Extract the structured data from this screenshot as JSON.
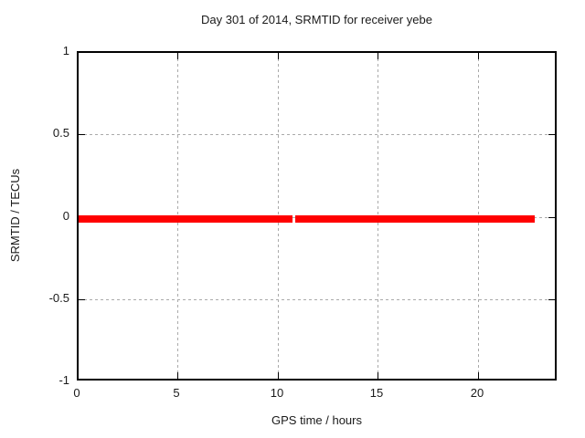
{
  "chart_data": {
    "type": "line",
    "title": "Day 301 of 2014, SRMTID for receiver yebe",
    "xlabel": "GPS time / hours",
    "ylabel": "SRMTID / TECUs",
    "xlim": [
      0,
      24
    ],
    "ylim": [
      -1,
      1
    ],
    "xticks": [
      0,
      5,
      10,
      15,
      20
    ],
    "yticks": [
      1,
      0.5,
      0,
      -0.5,
      -1
    ],
    "grid": true,
    "grid_style": "dashed",
    "legend": null,
    "series": [
      {
        "name": "SRMTID",
        "color": "#ff0000",
        "value_constant": 0,
        "segments": [
          {
            "x_start": 0.0,
            "x_end": 10.69,
            "y": 0
          },
          {
            "x_start": 10.83,
            "x_end": 22.8,
            "y": 0
          }
        ]
      }
    ]
  },
  "colors": {
    "background": "#ffffff",
    "border": "#000000",
    "grid": "#aaaaaa",
    "text": "#1a1a1a",
    "series_red": "#ff0000"
  }
}
